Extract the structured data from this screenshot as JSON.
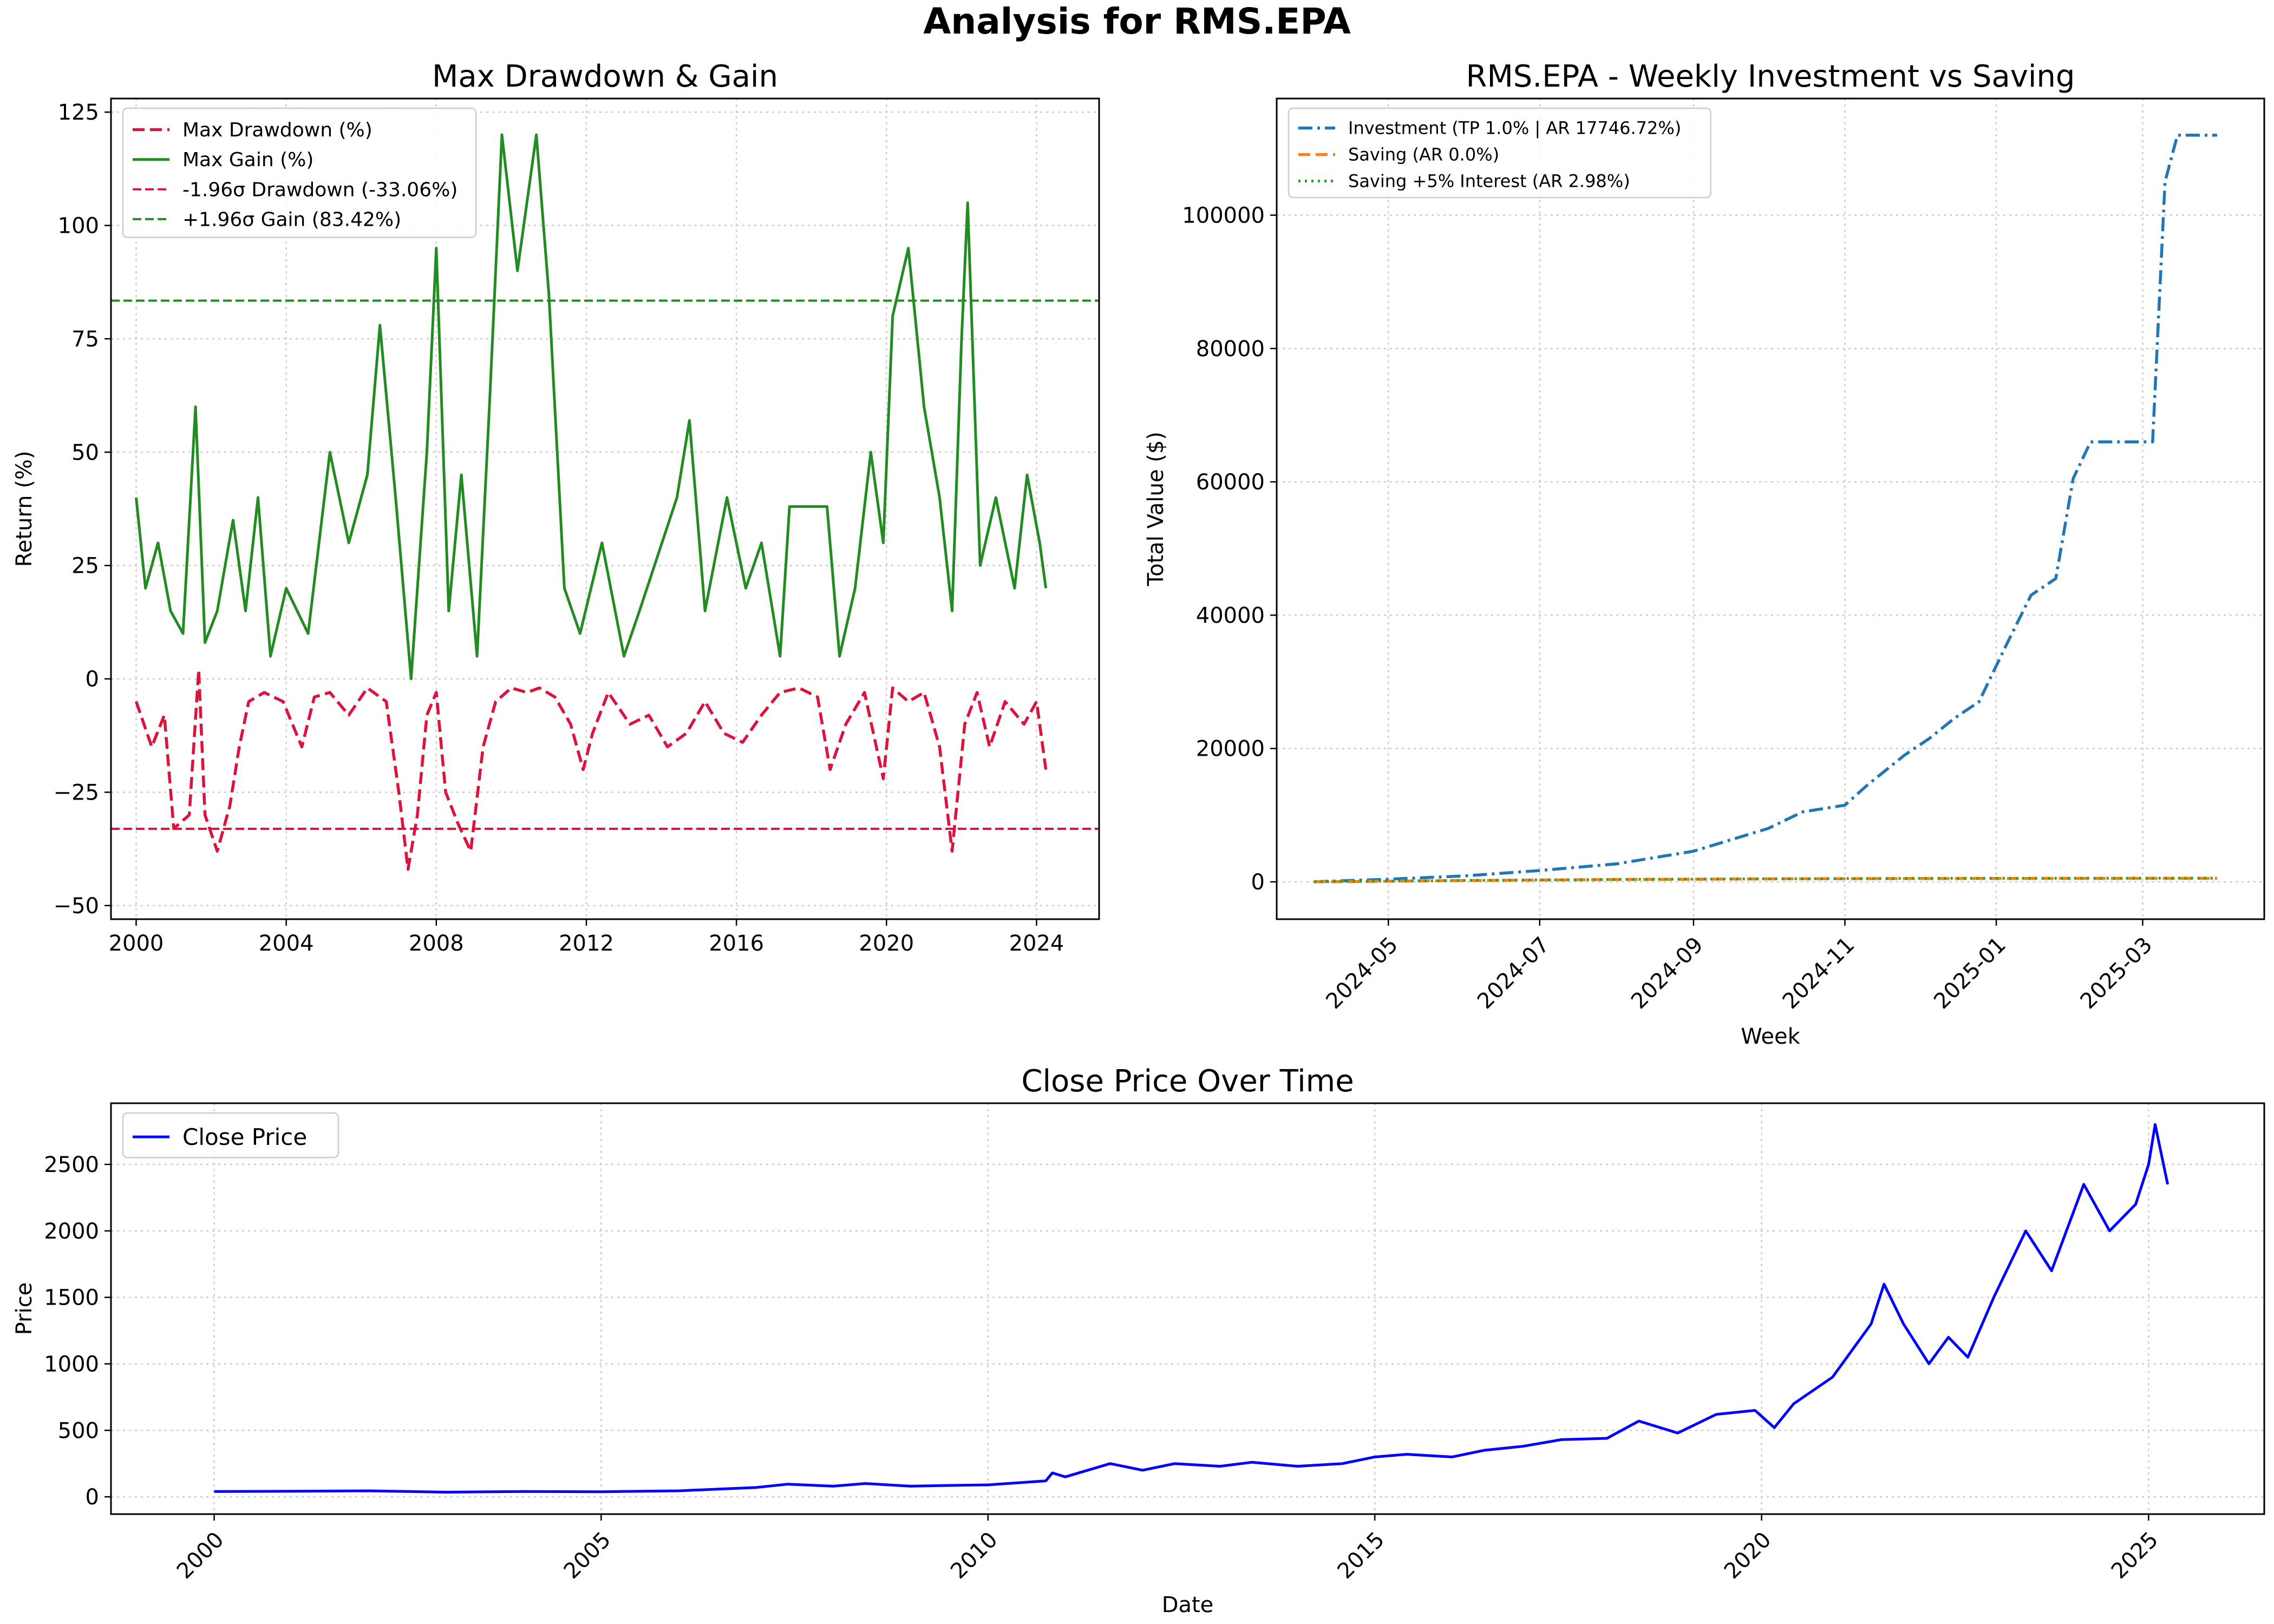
{
  "figure": {
    "title": "Analysis for RMS.EPA"
  },
  "colors": {
    "drawdown": "#DC143C",
    "gain": "#228B22",
    "investment": "#1f77b4",
    "saving": "#ff7f0e",
    "saving_interest": "#2ca02c",
    "close": "#0000ff",
    "grid": "#cccccc"
  },
  "chart_data": [
    {
      "type": "line",
      "title": "Max Drawdown & Gain",
      "xlabel": "",
      "ylabel": "Return (%)",
      "x_ticks": [
        "2000",
        "2004",
        "2008",
        "2012",
        "2016",
        "2020",
        "2024"
      ],
      "y_ticks": [
        "125",
        "100",
        "75",
        "50",
        "25",
        "0",
        "−25",
        "−50"
      ],
      "xlim": [
        "1999-05",
        "2025-09"
      ],
      "ylim": [
        -53,
        128
      ],
      "grid": true,
      "legend_position": "top-left",
      "series": [
        {
          "name": "Max Drawdown (%)",
          "style": "dashed",
          "points": [
            [
              "2000-01",
              -5
            ],
            [
              "2000-06",
              -15
            ],
            [
              "2000-10",
              -8
            ],
            [
              "2001-01",
              -33
            ],
            [
              "2001-06",
              -30
            ],
            [
              "2001-09",
              2
            ],
            [
              "2001-11",
              -30
            ],
            [
              "2002-03",
              -38
            ],
            [
              "2002-07",
              -28
            ],
            [
              "2002-10",
              -15
            ],
            [
              "2003-01",
              -5
            ],
            [
              "2003-06",
              -3
            ],
            [
              "2003-12",
              -5
            ],
            [
              "2004-06",
              -15
            ],
            [
              "2004-10",
              -4
            ],
            [
              "2005-03",
              -3
            ],
            [
              "2005-09",
              -8
            ],
            [
              "2006-03",
              -2
            ],
            [
              "2006-09",
              -5
            ],
            [
              "2007-01",
              -25
            ],
            [
              "2007-04",
              -42
            ],
            [
              "2007-07",
              -30
            ],
            [
              "2007-10",
              -8
            ],
            [
              "2008-01",
              -3
            ],
            [
              "2008-04",
              -25
            ],
            [
              "2008-08",
              -32
            ],
            [
              "2008-12",
              -38
            ],
            [
              "2009-04",
              -15
            ],
            [
              "2009-08",
              -5
            ],
            [
              "2010-01",
              -2
            ],
            [
              "2010-06",
              -3
            ],
            [
              "2010-10",
              -2
            ],
            [
              "2011-03",
              -4
            ],
            [
              "2011-08",
              -10
            ],
            [
              "2011-12",
              -20
            ],
            [
              "2012-03",
              -12
            ],
            [
              "2012-08",
              -3
            ],
            [
              "2013-03",
              -10
            ],
            [
              "2013-09",
              -8
            ],
            [
              "2014-03",
              -15
            ],
            [
              "2014-09",
              -12
            ],
            [
              "2015-03",
              -5
            ],
            [
              "2015-09",
              -12
            ],
            [
              "2016-03",
              -14
            ],
            [
              "2016-09",
              -8
            ],
            [
              "2017-03",
              -3
            ],
            [
              "2017-09",
              -2
            ],
            [
              "2018-03",
              -4
            ],
            [
              "2018-07",
              -20
            ],
            [
              "2018-12",
              -10
            ],
            [
              "2019-06",
              -3
            ],
            [
              "2019-12",
              -22
            ],
            [
              "2020-03",
              -2
            ],
            [
              "2020-08",
              -5
            ],
            [
              "2021-01",
              -3
            ],
            [
              "2021-06",
              -15
            ],
            [
              "2021-10",
              -38
            ],
            [
              "2022-02",
              -10
            ],
            [
              "2022-06",
              -3
            ],
            [
              "2022-10",
              -15
            ],
            [
              "2023-03",
              -5
            ],
            [
              "2023-09",
              -10
            ],
            [
              "2024-01",
              -5
            ],
            [
              "2024-04",
              -20
            ]
          ]
        },
        {
          "name": "Max Gain (%)",
          "style": "solid",
          "points": [
            [
              "2000-01",
              40
            ],
            [
              "2000-04",
              20
            ],
            [
              "2000-08",
              30
            ],
            [
              "2000-12",
              15
            ],
            [
              "2001-04",
              10
            ],
            [
              "2001-08",
              60
            ],
            [
              "2001-11",
              8
            ],
            [
              "2002-03",
              15
            ],
            [
              "2002-08",
              35
            ],
            [
              "2002-12",
              15
            ],
            [
              "2003-04",
              40
            ],
            [
              "2003-08",
              5
            ],
            [
              "2004-01",
              20
            ],
            [
              "2004-08",
              10
            ],
            [
              "2005-03",
              50
            ],
            [
              "2005-09",
              30
            ],
            [
              "2006-03",
              45
            ],
            [
              "2006-07",
              78
            ],
            [
              "2006-12",
              40
            ],
            [
              "2007-05",
              0
            ],
            [
              "2007-10",
              50
            ],
            [
              "2008-01",
              95
            ],
            [
              "2008-05",
              15
            ],
            [
              "2008-09",
              45
            ],
            [
              "2009-02",
              5
            ],
            [
              "2009-06",
              60
            ],
            [
              "2009-10",
              120
            ],
            [
              "2010-03",
              90
            ],
            [
              "2010-09",
              120
            ],
            [
              "2011-01",
              85
            ],
            [
              "2011-06",
              20
            ],
            [
              "2011-11",
              10
            ],
            [
              "2012-06",
              30
            ],
            [
              "2013-01",
              5
            ],
            [
              "2013-06",
              15
            ],
            [
              "2014-06",
              40
            ],
            [
              "2014-10",
              57
            ],
            [
              "2015-03",
              15
            ],
            [
              "2015-10",
              40
            ],
            [
              "2016-04",
              20
            ],
            [
              "2016-09",
              30
            ],
            [
              "2017-03",
              5
            ],
            [
              "2017-06",
              38
            ],
            [
              "2017-12",
              38
            ],
            [
              "2018-06",
              38
            ],
            [
              "2018-10",
              5
            ],
            [
              "2019-03",
              20
            ],
            [
              "2019-08",
              50
            ],
            [
              "2019-12",
              30
            ],
            [
              "2020-03",
              80
            ],
            [
              "2020-08",
              95
            ],
            [
              "2021-01",
              60
            ],
            [
              "2021-06",
              40
            ],
            [
              "2021-10",
              15
            ],
            [
              "2022-01",
              75
            ],
            [
              "2022-03",
              105
            ],
            [
              "2022-07",
              25
            ],
            [
              "2022-12",
              40
            ],
            [
              "2023-06",
              20
            ],
            [
              "2023-10",
              45
            ],
            [
              "2024-02",
              30
            ],
            [
              "2024-04",
              20
            ]
          ]
        },
        {
          "name": "-1.96σ Drawdown (-33.06%)",
          "style": "dashed-thin",
          "hline": -33.06
        },
        {
          "name": "+1.96σ Gain (83.42%)",
          "style": "dashed-thin",
          "hline": 83.42
        }
      ]
    },
    {
      "type": "line",
      "title": "RMS.EPA - Weekly Investment vs Saving",
      "xlabel": "Week",
      "ylabel": "Total Value ($)",
      "x_ticks": [
        "2024-05",
        "2024-07",
        "2024-09",
        "2024-11",
        "2025-01",
        "2025-03"
      ],
      "y_ticks": [
        "100000",
        "80000",
        "60000",
        "40000",
        "20000",
        "0"
      ],
      "xlim": [
        "2024-03-17",
        "2025-04-19"
      ],
      "ylim": [
        -5600,
        117500
      ],
      "grid": true,
      "legend_position": "top-left",
      "series": [
        {
          "name": "Investment (TP 1.0% | AR 17746.72%)",
          "style": "dashdot",
          "points": [
            [
              "2024-04-01",
              10
            ],
            [
              "2024-05-01",
              400
            ],
            [
              "2024-06-01",
              900
            ],
            [
              "2024-07-01",
              1700
            ],
            [
              "2024-08-01",
              2700
            ],
            [
              "2024-09-01",
              4600
            ],
            [
              "2024-10-01",
              8000
            ],
            [
              "2024-10-15",
              10500
            ],
            [
              "2024-11-01",
              11500
            ],
            [
              "2024-11-10",
              14500
            ],
            [
              "2024-11-25",
              19000
            ],
            [
              "2024-12-05",
              21500
            ],
            [
              "2024-12-15",
              24500
            ],
            [
              "2024-12-25",
              27000
            ],
            [
              "2025-01-05",
              35500
            ],
            [
              "2025-01-15",
              43000
            ],
            [
              "2025-01-25",
              45500
            ],
            [
              "2025-02-01",
              60500
            ],
            [
              "2025-02-08",
              66000
            ],
            [
              "2025-02-20",
              66000
            ],
            [
              "2025-03-05",
              66000
            ],
            [
              "2025-03-10",
              105000
            ],
            [
              "2025-03-15",
              112000
            ],
            [
              "2025-03-31",
              112000
            ]
          ]
        },
        {
          "name": "Saving (AR 0.0%)",
          "style": "dashed",
          "points": [
            [
              "2024-04-01",
              0
            ],
            [
              "2024-06-01",
              200
            ],
            [
              "2024-08-01",
              350
            ],
            [
              "2024-10-01",
              450
            ],
            [
              "2024-12-01",
              500
            ],
            [
              "2025-02-01",
              520
            ],
            [
              "2025-03-31",
              530
            ]
          ]
        },
        {
          "name": "Saving +5% Interest (AR 2.98%)",
          "style": "dotted",
          "points": [
            [
              "2024-04-01",
              10
            ],
            [
              "2024-06-01",
              210
            ],
            [
              "2024-08-01",
              360
            ],
            [
              "2024-10-01",
              460
            ],
            [
              "2024-12-01",
              520
            ],
            [
              "2025-02-01",
              540
            ],
            [
              "2025-03-31",
              555
            ]
          ]
        }
      ]
    },
    {
      "type": "line",
      "title": "Close Price Over Time",
      "xlabel": "Date",
      "ylabel": "Price",
      "x_ticks": [
        "2000",
        "2005",
        "2010",
        "2015",
        "2020",
        "2025"
      ],
      "y_ticks": [
        "2500",
        "2000",
        "1500",
        "1000",
        "500",
        "0"
      ],
      "xlim": [
        "1998-09",
        "2026-07"
      ],
      "ylim": [
        -130,
        2960
      ],
      "grid": true,
      "legend_position": "top-left",
      "series": [
        {
          "name": "Close Price",
          "style": "solid",
          "points": [
            [
              "2000-01",
              40
            ],
            [
              "2001-01",
              42
            ],
            [
              "2002-01",
              45
            ],
            [
              "2003-01",
              35
            ],
            [
              "2004-01",
              40
            ],
            [
              "2005-01",
              38
            ],
            [
              "2006-01",
              45
            ],
            [
              "2007-01",
              70
            ],
            [
              "2007-06",
              95
            ],
            [
              "2008-01",
              80
            ],
            [
              "2008-06",
              100
            ],
            [
              "2009-01",
              80
            ],
            [
              "2009-06",
              85
            ],
            [
              "2010-01",
              90
            ],
            [
              "2010-10",
              120
            ],
            [
              "2010-11",
              180
            ],
            [
              "2011-01",
              150
            ],
            [
              "2011-08",
              250
            ],
            [
              "2012-01",
              200
            ],
            [
              "2012-06",
              250
            ],
            [
              "2013-01",
              230
            ],
            [
              "2013-06",
              260
            ],
            [
              "2014-01",
              230
            ],
            [
              "2014-08",
              250
            ],
            [
              "2015-01",
              300
            ],
            [
              "2015-06",
              320
            ],
            [
              "2016-01",
              300
            ],
            [
              "2016-06",
              350
            ],
            [
              "2016-12",
              380
            ],
            [
              "2017-06",
              430
            ],
            [
              "2018-01",
              440
            ],
            [
              "2018-06",
              570
            ],
            [
              "2018-12",
              480
            ],
            [
              "2019-06",
              620
            ],
            [
              "2019-12",
              650
            ],
            [
              "2020-03",
              520
            ],
            [
              "2020-06",
              700
            ],
            [
              "2020-12",
              900
            ],
            [
              "2021-06",
              1300
            ],
            [
              "2021-08",
              1600
            ],
            [
              "2021-11",
              1300
            ],
            [
              "2022-03",
              1000
            ],
            [
              "2022-06",
              1200
            ],
            [
              "2022-09",
              1050
            ],
            [
              "2023-01",
              1500
            ],
            [
              "2023-06",
              2000
            ],
            [
              "2023-10",
              1700
            ],
            [
              "2024-03",
              2350
            ],
            [
              "2024-07",
              2000
            ],
            [
              "2024-11",
              2200
            ],
            [
              "2025-01",
              2500
            ],
            [
              "2025-02",
              2800
            ],
            [
              "2025-04",
              2350
            ]
          ]
        }
      ]
    }
  ]
}
